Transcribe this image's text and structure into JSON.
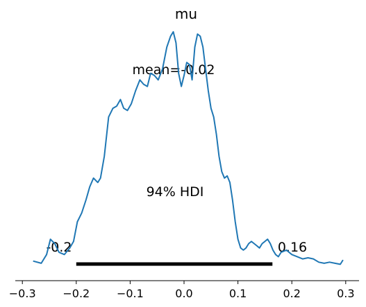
{
  "chart_data": {
    "type": "line",
    "title": "mu",
    "xlabel": "",
    "ylabel": "",
    "xlim": [
      -0.31,
      0.32
    ],
    "x_ticks": [
      -0.3,
      -0.2,
      -0.1,
      0.0,
      0.1,
      0.2,
      0.3
    ],
    "x_tick_labels": [
      "−0.3",
      "−0.2",
      "−0.1",
      "0.0",
      "0.1",
      "0.2",
      "0.3"
    ],
    "y_axis_visible": false,
    "grid": false,
    "line_color": "#1f77b4",
    "series": [
      {
        "x": [
          -0.28,
          -0.265,
          -0.255,
          -0.248,
          -0.24,
          -0.232,
          -0.222,
          -0.212,
          -0.205,
          -0.198,
          -0.19,
          -0.182,
          -0.175,
          -0.168,
          -0.16,
          -0.155,
          -0.148,
          -0.14,
          -0.132,
          -0.125,
          -0.118,
          -0.112,
          -0.105,
          -0.098,
          -0.09,
          -0.082,
          -0.075,
          -0.068,
          -0.062,
          -0.055,
          -0.048,
          -0.04,
          -0.032,
          -0.025,
          -0.02,
          -0.015,
          -0.01,
          -0.005,
          0.0,
          0.005,
          0.01,
          0.015,
          0.02,
          0.025,
          0.03,
          0.035,
          0.04,
          0.045,
          0.05,
          0.055,
          0.06,
          0.065,
          0.07,
          0.075,
          0.08,
          0.085,
          0.09,
          0.095,
          0.1,
          0.105,
          0.11,
          0.115,
          0.12,
          0.125,
          0.13,
          0.135,
          0.14,
          0.145,
          0.15,
          0.155,
          0.16,
          0.165,
          0.17,
          0.175,
          0.18,
          0.19,
          0.2,
          0.21,
          0.22,
          0.23,
          0.24,
          0.25,
          0.26,
          0.27,
          0.28,
          0.29,
          0.295
        ],
        "y": [
          0.02,
          0.01,
          0.05,
          0.12,
          0.1,
          0.06,
          0.05,
          0.08,
          0.11,
          0.2,
          0.24,
          0.3,
          0.36,
          0.4,
          0.38,
          0.4,
          0.5,
          0.68,
          0.72,
          0.73,
          0.76,
          0.72,
          0.71,
          0.74,
          0.8,
          0.85,
          0.83,
          0.82,
          0.88,
          0.87,
          0.85,
          0.9,
          1.0,
          1.05,
          1.07,
          1.02,
          0.88,
          0.82,
          0.87,
          0.93,
          0.92,
          0.85,
          1.0,
          1.06,
          1.05,
          1.0,
          0.9,
          0.8,
          0.72,
          0.68,
          0.6,
          0.5,
          0.43,
          0.4,
          0.41,
          0.38,
          0.3,
          0.2,
          0.12,
          0.08,
          0.07,
          0.08,
          0.1,
          0.11,
          0.1,
          0.09,
          0.08,
          0.1,
          0.11,
          0.12,
          0.1,
          0.07,
          0.05,
          0.04,
          0.06,
          0.07,
          0.05,
          0.04,
          0.03,
          0.035,
          0.03,
          0.015,
          0.01,
          0.015,
          0.01,
          0.005,
          0.025
        ]
      }
    ],
    "annotations": {
      "mean_text": "mean=-0.02",
      "hdi_label": "94% HDI",
      "hdi_low": -0.2,
      "hdi_high": 0.164,
      "hdi_low_text": "-0.2",
      "hdi_high_text": "0.16"
    }
  }
}
